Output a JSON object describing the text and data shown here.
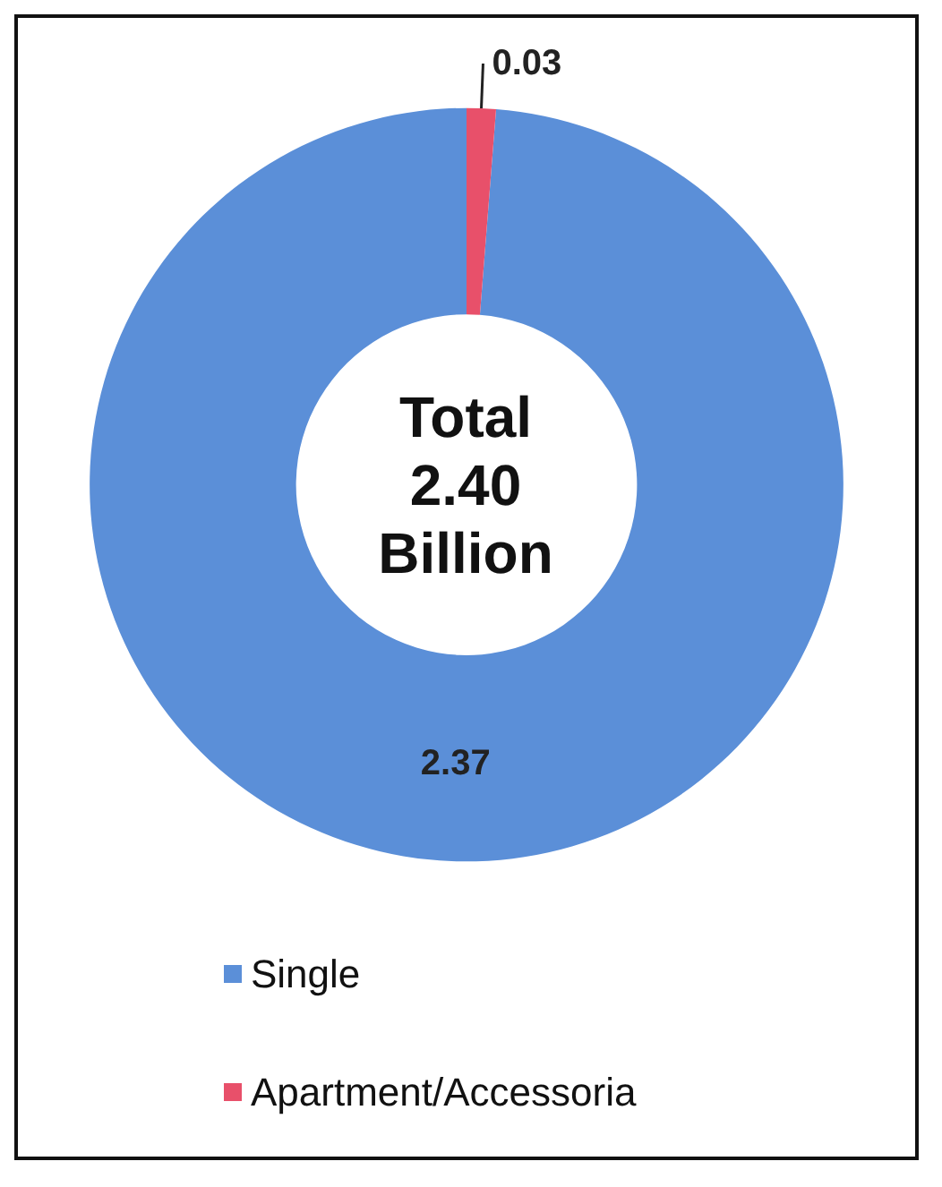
{
  "chart_data": {
    "type": "donut",
    "categories": [
      "Single",
      "Apartment/Accessoria"
    ],
    "values": [
      2.37,
      0.03
    ],
    "colors": [
      "#5b8fd8",
      "#e8506a"
    ],
    "data_labels": true,
    "legend": "bottom left",
    "annotations": [
      "Total\n2.40\nBillion"
    ]
  }
}
